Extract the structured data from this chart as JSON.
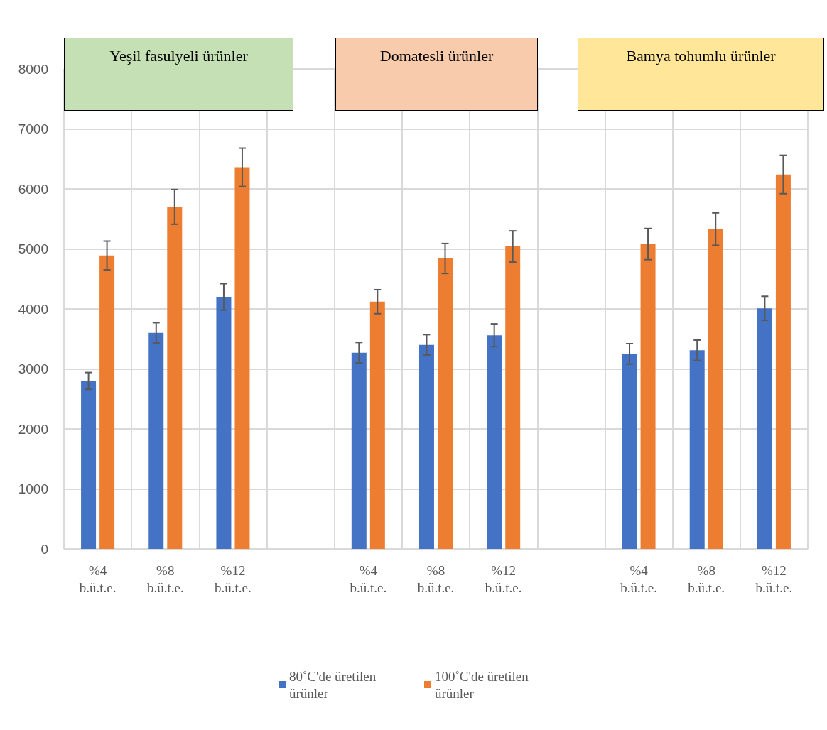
{
  "chart_data": {
    "type": "bar",
    "categories": [
      "%4\nb.ü.t.e.",
      "%8\nb.ü.t.e.",
      "%12\nb.ü.t.e.",
      null,
      "%4\nb.ü.t.e.",
      "%8\nb.ü.t.e.",
      "%12\nb.ü.t.e.",
      null,
      "%4\nb.ü.t.e.",
      "%8\nb.ü.t.e.",
      "%12\nb.ü.t.e."
    ],
    "series": [
      {
        "name": "80˚C'de üretilen ürünler",
        "color": "#4472c4",
        "values": [
          2800,
          3600,
          4200,
          null,
          3270,
          3400,
          3560,
          null,
          3250,
          3310,
          4010
        ],
        "errors": [
          140,
          170,
          220,
          null,
          170,
          170,
          190,
          null,
          170,
          170,
          200
        ]
      },
      {
        "name": "100˚C'de üretilen ürünler",
        "color": "#ed7d31",
        "values": [
          4890,
          5700,
          6360,
          null,
          4120,
          4840,
          5040,
          null,
          5080,
          5330,
          6240
        ],
        "errors": [
          240,
          290,
          320,
          null,
          200,
          250,
          260,
          null,
          260,
          270,
          320
        ]
      }
    ],
    "annotations": [
      "Yeşil fasulyeli ürünler",
      "Domatesli ürünler",
      "Bamya tohumlu ürünler"
    ],
    "ylim": [
      0,
      8000
    ],
    "yticks": [
      0,
      1000,
      2000,
      3000,
      4000,
      5000,
      6000,
      7000,
      8000
    ],
    "grid": true,
    "legend": "bottom"
  }
}
